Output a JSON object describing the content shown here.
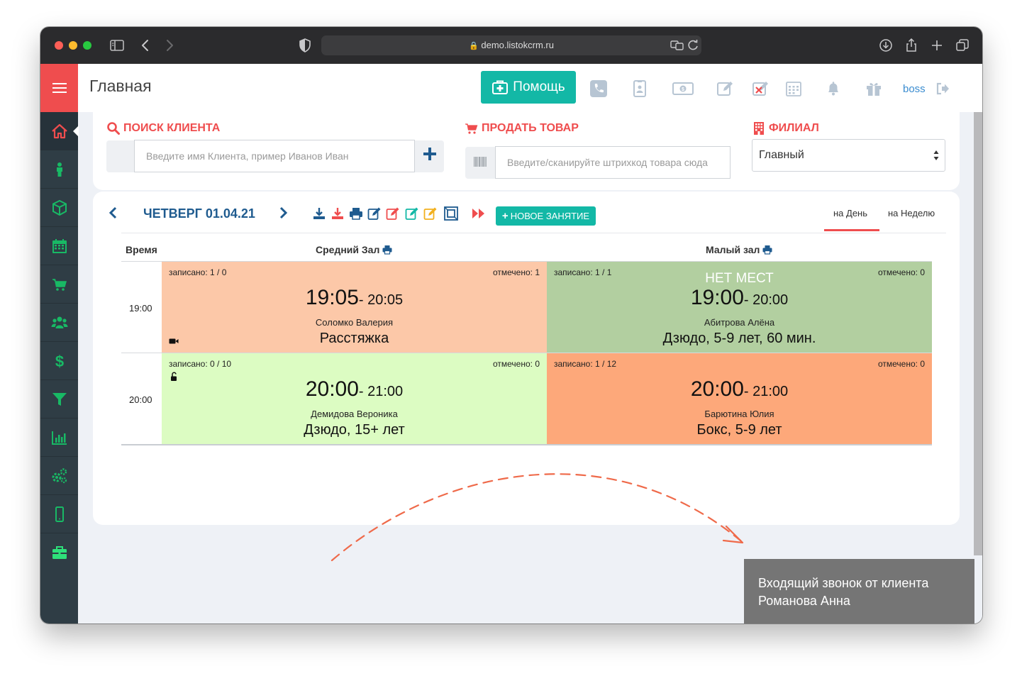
{
  "browser": {
    "url": "demo.listokcrm.ru"
  },
  "header": {
    "title": "Главная",
    "help_label": "Помощь",
    "user": "boss"
  },
  "search": {
    "label": "ПОИСК КЛИЕНТА",
    "placeholder": "Введите имя Клиента, пример Иванов Иван"
  },
  "sell": {
    "label": "ПРОДАТЬ ТОВАР",
    "placeholder": "Введите/сканируйте штрихкод товара сюда"
  },
  "branch": {
    "label": "ФИЛИАЛ",
    "value": "Главный"
  },
  "schedule": {
    "date": "ЧЕТВЕРГ 01.04.21",
    "new_lesson": "НОВОЕ ЗАНЯТИЕ",
    "view_day": "на День",
    "view_week": "на Неделю",
    "col_time": "Время",
    "rooms": [
      "Средний Зал",
      "Малый зал"
    ],
    "rows": [
      {
        "time": "19:00",
        "cells": [
          {
            "zap": "записано: 1 / 0",
            "otm": "отмечено: 1",
            "start": "19:05",
            "end": "- 20:05",
            "teacher": "Соломко Валерия",
            "cls": "Расстяжка",
            "status": "",
            "icon": "video-camera-icon",
            "color": "#fcc8a8"
          },
          {
            "zap": "записано: 1 / 1",
            "otm": "отмечено: 0",
            "start": "19:00",
            "end": "- 20:00",
            "teacher": "Абитрова Алёна",
            "cls": "Дзюдо, 5-9 лет, 60 мин.",
            "status": "НЕТ МЕСТ",
            "icon": "",
            "color": "#b2cfa0"
          }
        ]
      },
      {
        "time": "20:00",
        "cells": [
          {
            "zap": "записано: 0 / 10",
            "otm": "отмечено: 0",
            "start": "20:00",
            "end": "- 21:00",
            "teacher": "Демидова Вероника",
            "cls": "Дзюдо, 15+ лет",
            "status": "",
            "icon": "unlock-icon",
            "color": "#dcfcc2"
          },
          {
            "zap": "записано: 1 / 12",
            "otm": "отмечено: 0",
            "start": "20:00",
            "end": "- 21:00",
            "teacher": "Барютина Юлия",
            "cls": "Бокс, 5-9 лет",
            "status": "",
            "icon": "",
            "color": "#fda87a"
          }
        ]
      }
    ]
  },
  "toast": {
    "line1": "Входящий звонок от клиента",
    "line2": "Романова Анна"
  },
  "colors": {
    "accent_red": "#ef4d4e",
    "teal": "#13b8a6",
    "sidebar": "#2f3d45",
    "sidebar_icon": "#18b965",
    "link_blue": "#1f5b8f"
  }
}
